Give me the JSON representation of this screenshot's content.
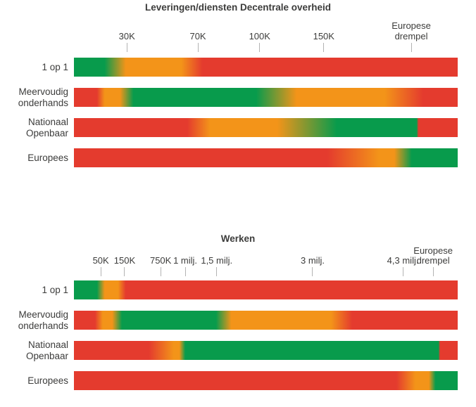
{
  "page": {
    "background": "#ffffff"
  },
  "colors": {
    "green": "#089b4c",
    "orange": "#f39419",
    "red": "#e43b2e",
    "tick_mark": "#b3b3b3",
    "text": "#3c3c3b"
  },
  "charts": [
    {
      "name": "leveringen-diensten-decentrale-overheid",
      "title": "Leveringen/diensten Decentrale overheid",
      "ticks": [
        {
          "label": "30K",
          "pos": 13.8
        },
        {
          "label": "70K",
          "pos": 32.3
        },
        {
          "label": "100K",
          "pos": 48.4
        },
        {
          "label": "150K",
          "pos": 65.1
        },
        {
          "label": "Europese",
          "label2": "drempel",
          "pos": 87.9
        }
      ],
      "rows": [
        {
          "label": "1 op 1",
          "stops": [
            [
              "green",
              0
            ],
            [
              "green",
              8
            ],
            [
              "orange",
              13.5
            ],
            [
              "orange",
              28
            ],
            [
              "red",
              33.5
            ],
            [
              "red",
              100
            ]
          ]
        },
        {
          "label": "Meervoudig",
          "label2": "onderhands",
          "stops": [
            [
              "red",
              0
            ],
            [
              "red",
              6
            ],
            [
              "orange",
              8
            ],
            [
              "orange",
              12
            ],
            [
              "green",
              15.5
            ],
            [
              "green",
              47.5
            ],
            [
              "orange",
              58
            ],
            [
              "orange",
              81
            ],
            [
              "red",
              91
            ],
            [
              "red",
              100
            ]
          ]
        },
        {
          "label": "Nationaal",
          "label2": "Openbaar",
          "stops": [
            [
              "red",
              0
            ],
            [
              "red",
              29.5
            ],
            [
              "orange",
              35.5
            ],
            [
              "orange",
              53
            ],
            [
              "green",
              68.5
            ],
            [
              "green",
              89.3
            ],
            [
              "red",
              89.8
            ],
            [
              "red",
              100
            ]
          ]
        },
        {
          "label": "Europees",
          "stops": [
            [
              "red",
              0
            ],
            [
              "red",
              66
            ],
            [
              "orange",
              79.5
            ],
            [
              "orange",
              83.5
            ],
            [
              "green",
              88
            ],
            [
              "green",
              100
            ]
          ]
        }
      ]
    },
    {
      "name": "werken",
      "title": "Werken",
      "ticks": [
        {
          "label": "50K",
          "pos": 7.0
        },
        {
          "label": "150K",
          "pos": 13.2
        },
        {
          "label": "750K",
          "pos": 22.6
        },
        {
          "label": "1 milj.",
          "pos": 29.0
        },
        {
          "label": "1,5 milj.",
          "pos": 37.2
        },
        {
          "label": "3 milj.",
          "pos": 62.2
        },
        {
          "label": "4,3 milj.",
          "pos": 85.7
        },
        {
          "label": "Europese",
          "label2": "drempel",
          "pos": 93.6
        }
      ],
      "rows": [
        {
          "label": "1 op 1",
          "stops": [
            [
              "green",
              0
            ],
            [
              "green",
              6
            ],
            [
              "orange",
              8
            ],
            [
              "orange",
              11.5
            ],
            [
              "red",
              13.5
            ],
            [
              "red",
              100
            ]
          ]
        },
        {
          "label": "Meervoudig",
          "label2": "onderhands",
          "stops": [
            [
              "red",
              0
            ],
            [
              "red",
              5.5
            ],
            [
              "orange",
              7.5
            ],
            [
              "orange",
              10
            ],
            [
              "green",
              12.5
            ],
            [
              "green",
              37
            ],
            [
              "orange",
              41
            ],
            [
              "orange",
              67
            ],
            [
              "red",
              72.5
            ],
            [
              "red",
              100
            ]
          ]
        },
        {
          "label": "Nationaal",
          "label2": "Openbaar",
          "stops": [
            [
              "red",
              0
            ],
            [
              "red",
              19.5
            ],
            [
              "orange",
              26
            ],
            [
              "orange",
              27.5
            ],
            [
              "green",
              29
            ],
            [
              "green",
              95
            ],
            [
              "red",
              95.4
            ],
            [
              "red",
              100
            ]
          ]
        },
        {
          "label": "Europees",
          "stops": [
            [
              "red",
              0
            ],
            [
              "red",
              84
            ],
            [
              "orange",
              89
            ],
            [
              "orange",
              92.5
            ],
            [
              "green",
              94.2
            ],
            [
              "green",
              100
            ]
          ]
        }
      ]
    }
  ],
  "chart_data": [
    {
      "type": "heatmap",
      "title": "Leveringen/diensten Decentrale overheid",
      "x_axis": {
        "tick_labels": [
          "30K",
          "70K",
          "100K",
          "150K",
          "Europese drempel"
        ],
        "scale": "nonlinear contract value axis"
      },
      "categories": [
        "1 op 1",
        "Meervoudig onderhands",
        "Nationaal Openbaar",
        "Europees"
      ],
      "legend_position": "none",
      "grid": false,
      "rows": [
        {
          "name": "1 op 1",
          "zones": [
            {
              "color": "green",
              "to": "30K"
            },
            {
              "color": "orange",
              "from": "30K",
              "to": "70K"
            },
            {
              "color": "red",
              "from": "70K"
            }
          ]
        },
        {
          "name": "Meervoudig onderhands",
          "zones": [
            {
              "color": "red",
              "to": "~20K"
            },
            {
              "color": "orange",
              "from": "~20K",
              "to": "~40K"
            },
            {
              "color": "green",
              "from": "~40K",
              "to": "~100K"
            },
            {
              "color": "orange",
              "from": "~100K",
              "to": "Europese drempel"
            },
            {
              "color": "red",
              "from": "Europese drempel"
            }
          ]
        },
        {
          "name": "Nationaal Openbaar",
          "zones": [
            {
              "color": "red",
              "to": "70K"
            },
            {
              "color": "orange",
              "from": "70K",
              "to": "150K"
            },
            {
              "color": "green",
              "from": "150K",
              "to": "Europese drempel"
            },
            {
              "color": "red",
              "from": "Europese drempel"
            }
          ]
        },
        {
          "name": "Europees",
          "zones": [
            {
              "color": "red",
              "to": "150K"
            },
            {
              "color": "orange",
              "from": "150K",
              "to": "Europese drempel"
            },
            {
              "color": "green",
              "from": "Europese drempel"
            }
          ]
        }
      ]
    },
    {
      "type": "heatmap",
      "title": "Werken",
      "x_axis": {
        "tick_labels": [
          "50K",
          "150K",
          "750K",
          "1 milj.",
          "1,5 milj.",
          "3 milj.",
          "4,3 milj.",
          "Europese drempel"
        ],
        "scale": "nonlinear contract value axis"
      },
      "categories": [
        "1 op 1",
        "Meervoudig onderhands",
        "Nationaal Openbaar",
        "Europees"
      ],
      "legend_position": "none",
      "grid": false,
      "rows": [
        {
          "name": "1 op 1",
          "zones": [
            {
              "color": "green",
              "to": "50K"
            },
            {
              "color": "orange",
              "from": "50K",
              "to": "150K"
            },
            {
              "color": "red",
              "from": "150K"
            }
          ]
        },
        {
          "name": "Meervoudig onderhands",
          "zones": [
            {
              "color": "red",
              "to": "50K"
            },
            {
              "color": "orange",
              "from": "50K",
              "to": "150K"
            },
            {
              "color": "green",
              "from": "150K",
              "to": "1,5 milj."
            },
            {
              "color": "orange",
              "from": "1,5 milj.",
              "to": "~3,5 milj."
            },
            {
              "color": "red",
              "from": "~3,5 milj."
            }
          ]
        },
        {
          "name": "Nationaal Openbaar",
          "zones": [
            {
              "color": "red",
              "to": "750K"
            },
            {
              "color": "orange",
              "from": "750K",
              "to": "1 milj."
            },
            {
              "color": "green",
              "from": "1 milj.",
              "to": "Europese drempel"
            },
            {
              "color": "red",
              "from": "Europese drempel"
            }
          ]
        },
        {
          "name": "Europees",
          "zones": [
            {
              "color": "red",
              "to": "4,3 milj."
            },
            {
              "color": "orange",
              "from": "4,3 milj.",
              "to": "Europese drempel"
            },
            {
              "color": "green",
              "from": "Europese drempel"
            }
          ]
        }
      ]
    }
  ]
}
